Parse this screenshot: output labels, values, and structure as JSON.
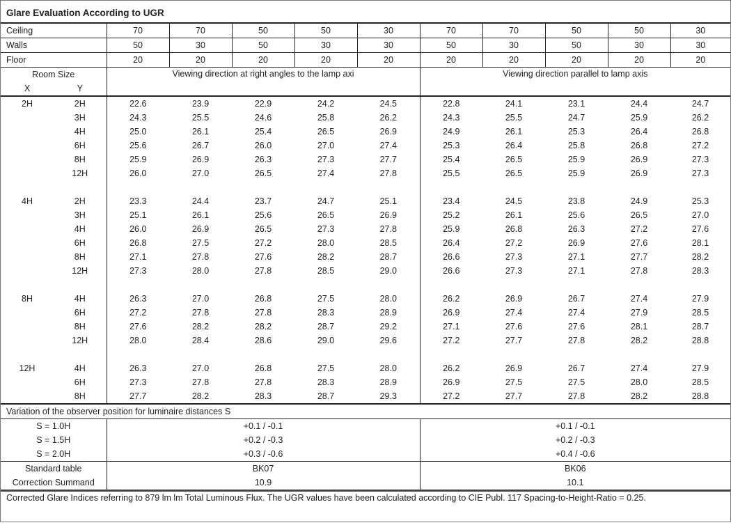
{
  "title": "Glare Evaluation According to UGR",
  "reflectance": [
    {
      "label": "Ceiling",
      "values": [
        "70",
        "70",
        "50",
        "50",
        "30",
        "70",
        "70",
        "50",
        "50",
        "30"
      ]
    },
    {
      "label": "Walls",
      "values": [
        "50",
        "30",
        "50",
        "30",
        "30",
        "50",
        "30",
        "50",
        "30",
        "30"
      ]
    },
    {
      "label": "Floor",
      "values": [
        "20",
        "20",
        "20",
        "20",
        "20",
        "20",
        "20",
        "20",
        "20",
        "20"
      ]
    }
  ],
  "room_size_label": "Room Size",
  "x_label": "X",
  "y_label": "Y",
  "direction_right": "Viewing direction at right angles to the lamp axi",
  "direction_parallel": "Viewing direction parallel to lamp axis",
  "groups": [
    {
      "x": "2H",
      "rows": [
        {
          "y": "2H",
          "right": [
            "22.6",
            "23.9",
            "22.9",
            "24.2",
            "24.5"
          ],
          "parallel": [
            "22.8",
            "24.1",
            "23.1",
            "24.4",
            "24.7"
          ]
        },
        {
          "y": "3H",
          "right": [
            "24.3",
            "25.5",
            "24.6",
            "25.8",
            "26.2"
          ],
          "parallel": [
            "24.3",
            "25.5",
            "24.7",
            "25.9",
            "26.2"
          ]
        },
        {
          "y": "4H",
          "right": [
            "25.0",
            "26.1",
            "25.4",
            "26.5",
            "26.9"
          ],
          "parallel": [
            "24.9",
            "26.1",
            "25.3",
            "26.4",
            "26.8"
          ]
        },
        {
          "y": "6H",
          "right": [
            "25.6",
            "26.7",
            "26.0",
            "27.0",
            "27.4"
          ],
          "parallel": [
            "25.3",
            "26.4",
            "25.8",
            "26.8",
            "27.2"
          ]
        },
        {
          "y": "8H",
          "right": [
            "25.9",
            "26.9",
            "26.3",
            "27.3",
            "27.7"
          ],
          "parallel": [
            "25.4",
            "26.5",
            "25.9",
            "26.9",
            "27.3"
          ]
        },
        {
          "y": "12H",
          "right": [
            "26.0",
            "27.0",
            "26.5",
            "27.4",
            "27.8"
          ],
          "parallel": [
            "25.5",
            "26.5",
            "25.9",
            "26.9",
            "27.3"
          ]
        }
      ]
    },
    {
      "x": "4H",
      "rows": [
        {
          "y": "2H",
          "right": [
            "23.3",
            "24.4",
            "23.7",
            "24.7",
            "25.1"
          ],
          "parallel": [
            "23.4",
            "24.5",
            "23.8",
            "24.9",
            "25.3"
          ]
        },
        {
          "y": "3H",
          "right": [
            "25.1",
            "26.1",
            "25.6",
            "26.5",
            "26.9"
          ],
          "parallel": [
            "25.2",
            "26.1",
            "25.6",
            "26.5",
            "27.0"
          ]
        },
        {
          "y": "4H",
          "right": [
            "26.0",
            "26.9",
            "26.5",
            "27.3",
            "27.8"
          ],
          "parallel": [
            "25.9",
            "26.8",
            "26.3",
            "27.2",
            "27.6"
          ]
        },
        {
          "y": "6H",
          "right": [
            "26.8",
            "27.5",
            "27.2",
            "28.0",
            "28.5"
          ],
          "parallel": [
            "26.4",
            "27.2",
            "26.9",
            "27.6",
            "28.1"
          ]
        },
        {
          "y": "8H",
          "right": [
            "27.1",
            "27.8",
            "27.6",
            "28.2",
            "28.7"
          ],
          "parallel": [
            "26.6",
            "27.3",
            "27.1",
            "27.7",
            "28.2"
          ]
        },
        {
          "y": "12H",
          "right": [
            "27.3",
            "28.0",
            "27.8",
            "28.5",
            "29.0"
          ],
          "parallel": [
            "26.6",
            "27.3",
            "27.1",
            "27.8",
            "28.3"
          ]
        }
      ]
    },
    {
      "x": "8H",
      "rows": [
        {
          "y": "4H",
          "right": [
            "26.3",
            "27.0",
            "26.8",
            "27.5",
            "28.0"
          ],
          "parallel": [
            "26.2",
            "26.9",
            "26.7",
            "27.4",
            "27.9"
          ]
        },
        {
          "y": "6H",
          "right": [
            "27.2",
            "27.8",
            "27.8",
            "28.3",
            "28.9"
          ],
          "parallel": [
            "26.9",
            "27.4",
            "27.4",
            "27.9",
            "28.5"
          ]
        },
        {
          "y": "8H",
          "right": [
            "27.6",
            "28.2",
            "28.2",
            "28.7",
            "29.2"
          ],
          "parallel": [
            "27.1",
            "27.6",
            "27.6",
            "28.1",
            "28.7"
          ]
        },
        {
          "y": "12H",
          "right": [
            "28.0",
            "28.4",
            "28.6",
            "29.0",
            "29.6"
          ],
          "parallel": [
            "27.2",
            "27.7",
            "27.8",
            "28.2",
            "28.8"
          ]
        }
      ]
    },
    {
      "x": "12H",
      "rows": [
        {
          "y": "4H",
          "right": [
            "26.3",
            "27.0",
            "26.8",
            "27.5",
            "28.0"
          ],
          "parallel": [
            "26.2",
            "26.9",
            "26.7",
            "27.4",
            "27.9"
          ]
        },
        {
          "y": "6H",
          "right": [
            "27.3",
            "27.8",
            "27.8",
            "28.3",
            "28.9"
          ],
          "parallel": [
            "26.9",
            "27.5",
            "27.5",
            "28.0",
            "28.5"
          ]
        },
        {
          "y": "8H",
          "right": [
            "27.7",
            "28.2",
            "28.3",
            "28.7",
            "29.3"
          ],
          "parallel": [
            "27.2",
            "27.7",
            "27.8",
            "28.2",
            "28.8"
          ]
        }
      ]
    }
  ],
  "variation": {
    "title": "Variation of the observer position for luminaire distances S",
    "rows": [
      {
        "label": "S = 1.0H",
        "right": "+0.1 / -0.1",
        "parallel": "+0.1 / -0.1"
      },
      {
        "label": "S = 1.5H",
        "right": "+0.2 / -0.3",
        "parallel": "+0.2 / -0.3"
      },
      {
        "label": "S = 2.0H",
        "right": "+0.3 / -0.6",
        "parallel": "+0.4 / -0.6"
      }
    ]
  },
  "standard_table": {
    "label": "Standard table",
    "right": "BK07",
    "parallel": "BK06"
  },
  "correction_summand": {
    "label": "Correction Summand",
    "right": "10.9",
    "parallel": "10.1"
  },
  "footer": "Corrected Glare Indices referring to 879 lm lm Total Luminous Flux. The UGR values have been calculated according to CIE Publ. 117    Spacing-to-Height-Ratio = 0.25."
}
